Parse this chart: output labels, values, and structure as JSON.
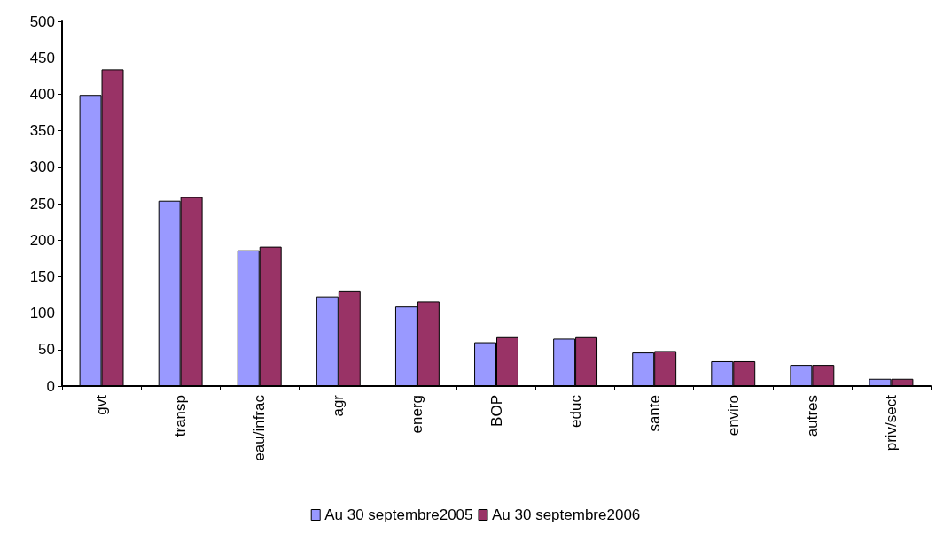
{
  "chart_data": {
    "type": "bar",
    "categories": [
      "gvt",
      "transp",
      "eau/infrac",
      "agr",
      "energ",
      "BOP",
      "educ",
      "sante",
      "enviro",
      "autres",
      "priv/sect"
    ],
    "series": [
      {
        "name": "Au 30 septembre2005",
        "color": "#9999ff",
        "values": [
          399,
          254,
          186,
          123,
          109,
          60,
          65,
          46,
          34,
          29,
          10
        ]
      },
      {
        "name": "Au 30 septembre2006",
        "color": "#993366",
        "values": [
          434,
          259,
          191,
          130,
          116,
          67,
          67,
          48,
          34,
          29,
          10
        ]
      }
    ],
    "ylim": [
      0,
      500
    ],
    "yticks": [
      0,
      50,
      100,
      150,
      200,
      250,
      300,
      350,
      400,
      450,
      500
    ],
    "grid": false,
    "legend": "bottom"
  }
}
